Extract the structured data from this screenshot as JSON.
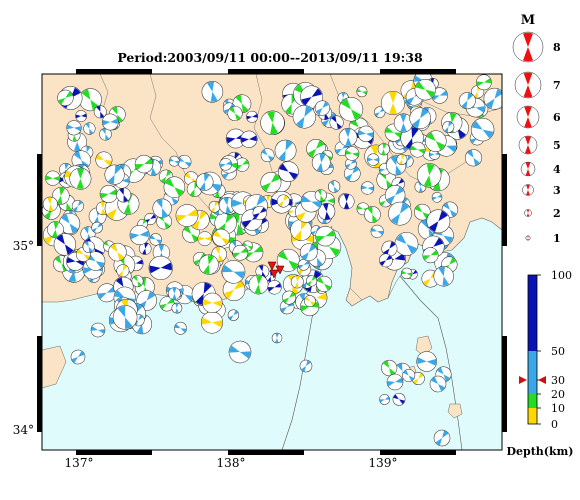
{
  "title": "Period:2003/09/11 00:00--2013/09/11 19:38",
  "map": {
    "lon_labels": [
      "137°",
      "138°",
      "139°"
    ],
    "lat_labels": [
      "35°",
      "34°"
    ],
    "lon_range": [
      136.8,
      139.8
    ],
    "lat_range": [
      33.9,
      35.9
    ],
    "land_color": "#fbe3c5",
    "sea_color": "#e0fbfb",
    "mainshock_marker": "red-triangle-marker"
  },
  "magnitude_legend": {
    "heading": "M",
    "items": [
      "8",
      "7",
      "6",
      "5",
      "4",
      "3",
      "2",
      "1"
    ]
  },
  "depth_legend": {
    "unit_label": "Depth(km)",
    "ticks": [
      "100",
      "50",
      "30",
      "20",
      "10",
      "0"
    ],
    "bands": [
      {
        "from": 0,
        "to": 10,
        "color": "#ffd800"
      },
      {
        "from": 10,
        "to": 20,
        "color": "#22dd22"
      },
      {
        "from": 20,
        "to": 50,
        "color": "#3aa8e8"
      },
      {
        "from": 50,
        "to": 100,
        "color": "#0a14b4"
      }
    ],
    "marker_depth": 30
  }
}
